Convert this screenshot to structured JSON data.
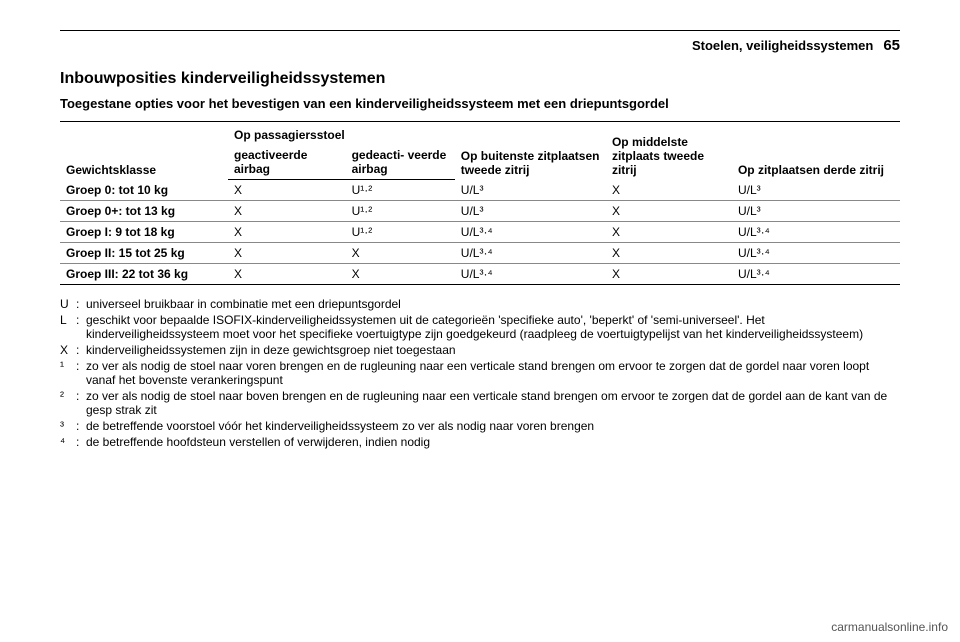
{
  "page": {
    "section": "Stoelen, veiligheidssystemen",
    "number": "65"
  },
  "title": "Inbouwposities kinderveiligheidssystemen",
  "subtitle": "Toegestane opties voor het bevestigen van een kinderveiligheidssysteem met een driepuntsgordel",
  "table": {
    "col_widths": [
      "20%",
      "14%",
      "13%",
      "18%",
      "15%",
      "20%"
    ],
    "header_top": {
      "weight": "",
      "passenger_span": "Op passagiersstoel",
      "outer2": "Op buitenste zitplaatsen tweede zitrij",
      "mid2": "Op middelste zitplaats tweede zitrij",
      "row3": "Op zitplaatsen derde zitrij"
    },
    "header_bottom": {
      "weight": "Gewichtsklasse",
      "airbag_on": "geactiveerde airbag",
      "airbag_off": "gedeacti- veerde airbag"
    },
    "rows": [
      {
        "c0": "Groep 0: tot 10 kg",
        "c1": "X",
        "c2": "U¹·²",
        "c3": "U/L³",
        "c4": "X",
        "c5": "U/L³"
      },
      {
        "c0": "Groep 0+: tot 13 kg",
        "c1": "X",
        "c2": "U¹·²",
        "c3": "U/L³",
        "c4": "X",
        "c5": "U/L³"
      },
      {
        "c0": "Groep I: 9 tot 18 kg",
        "c1": "X",
        "c2": "U¹·²",
        "c3": "U/L³·⁴",
        "c4": "X",
        "c5": "U/L³·⁴"
      },
      {
        "c0": "Groep II: 15 tot 25 kg",
        "c1": "X",
        "c2": "X",
        "c3": "U/L³·⁴",
        "c4": "X",
        "c5": "U/L³·⁴"
      },
      {
        "c0": "Groep III: 22 tot 36 kg",
        "c1": "X",
        "c2": "X",
        "c3": "U/L³·⁴",
        "c4": "X",
        "c5": "U/L³·⁴"
      }
    ]
  },
  "notes": [
    {
      "k": "U",
      "v": "universeel bruikbaar in combinatie met een driepuntsgordel"
    },
    {
      "k": "L",
      "v": "geschikt voor bepaalde ISOFIX-kinderveiligheidssystemen uit de categorieën 'specifieke auto', 'beperkt' of 'semi-universeel'. Het kinderveiligheidssysteem moet voor het specifieke voertuigtype zijn goedgekeurd (raadpleeg de voertuigtypelijst van het kinderveiligheidssysteem)"
    },
    {
      "k": "X",
      "v": "kinderveiligheidssystemen zijn in deze gewichtsgroep niet toegestaan"
    },
    {
      "k": "¹",
      "v": "zo ver als nodig de stoel naar voren brengen en de rugleuning naar een verticale stand brengen om ervoor te zorgen dat de gordel naar voren loopt vanaf het bovenste verankeringspunt"
    },
    {
      "k": "²",
      "v": "zo ver als nodig de stoel naar boven brengen en de rugleuning naar een verticale stand brengen om ervoor te zorgen dat de gordel aan de kant van de gesp strak zit"
    },
    {
      "k": "³",
      "v": "de betreffende voorstoel vóór het kinderveiligheidssysteem zo ver als nodig naar voren brengen"
    },
    {
      "k": "⁴",
      "v": "de betreffende hoofdsteun verstellen of verwijderen, indien nodig"
    }
  ],
  "footer": "carmanualsonline.info"
}
